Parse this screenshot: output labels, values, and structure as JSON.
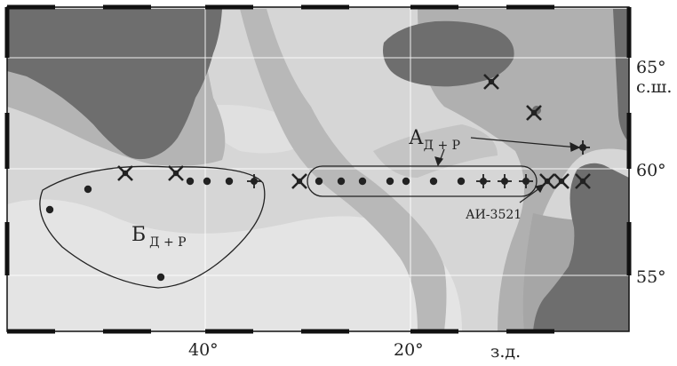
{
  "axes": {
    "lat_labels": [
      {
        "value": 65,
        "text": "65°"
      },
      {
        "value": 60,
        "text": "60°"
      },
      {
        "value": 55,
        "text": "55°"
      }
    ],
    "lat_unit": "с.ш.",
    "lon_labels": [
      {
        "value": 40,
        "text": "40°"
      },
      {
        "value": 20,
        "text": "20°"
      }
    ],
    "lon_unit": "з.д."
  },
  "regions": {
    "A": {
      "letter": "А",
      "sub": "Д + Р"
    },
    "B": {
      "letter": "Б",
      "sub": "Д + Р"
    }
  },
  "station_label": "АИ-3521",
  "colors": {
    "land": "#6e6e6e",
    "deep_water": "#dcdcdc",
    "shelf_water": "#a8a8a8",
    "frame": "#111111"
  },
  "markers": {
    "dots": [
      [
        56,
        236
      ],
      [
        99,
        213
      ],
      [
        181,
        312
      ],
      [
        214,
        204
      ],
      [
        233,
        204
      ],
      [
        258,
        204
      ],
      [
        359,
        204
      ],
      [
        384,
        204
      ],
      [
        408,
        204
      ],
      [
        439,
        204
      ],
      [
        457,
        204
      ],
      [
        488,
        204
      ],
      [
        519,
        204
      ]
    ],
    "crosses": [
      [
        141,
        195
      ],
      [
        198,
        195
      ],
      [
        337,
        204
      ],
      [
        553,
        92
      ],
      [
        601,
        127
      ],
      [
        616,
        204
      ],
      [
        632,
        204
      ],
      [
        656,
        204
      ]
    ],
    "stars": [
      [
        286,
        204
      ],
      [
        544,
        204
      ],
      [
        568,
        204
      ],
      [
        592,
        204
      ],
      [
        656,
        166
      ]
    ]
  }
}
